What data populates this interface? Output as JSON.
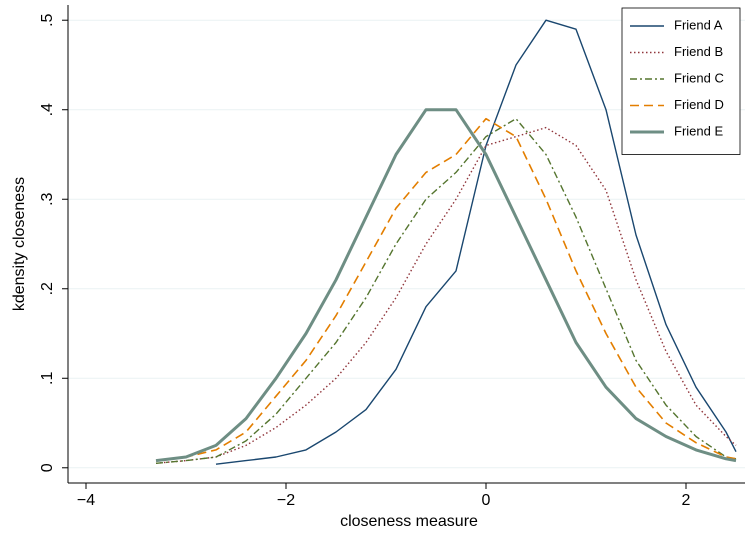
{
  "chart_data": {
    "type": "line",
    "xlabel": "closeness measure",
    "ylabel": "kdensity closeness",
    "x": [
      -3.3,
      -3.0,
      -2.7,
      -2.4,
      -2.1,
      -1.8,
      -1.5,
      -1.2,
      -0.9,
      -0.6,
      -0.3,
      0,
      0.3,
      0.6,
      0.9,
      1.2,
      1.5,
      1.8,
      2.1,
      2.4,
      2.5
    ],
    "series": [
      {
        "name": "Friend A",
        "color": "#1a476f",
        "values": [
          null,
          null,
          0.004,
          0.008,
          0.012,
          0.02,
          0.04,
          0.065,
          0.11,
          0.18,
          0.22,
          0.36,
          0.45,
          0.5,
          0.49,
          0.4,
          0.26,
          0.16,
          0.09,
          0.04,
          0.018
        ]
      },
      {
        "name": "Friend B",
        "color": "#90353b",
        "values": [
          0.005,
          0.008,
          0.012,
          0.025,
          0.045,
          0.07,
          0.1,
          0.14,
          0.19,
          0.25,
          0.3,
          0.36,
          0.37,
          0.38,
          0.36,
          0.31,
          0.21,
          0.13,
          0.07,
          0.035,
          0.025
        ]
      },
      {
        "name": "Friend C",
        "color": "#55752f",
        "values": [
          0.005,
          0.008,
          0.012,
          0.03,
          0.06,
          0.1,
          0.14,
          0.19,
          0.25,
          0.3,
          0.33,
          0.37,
          0.39,
          0.35,
          0.28,
          0.2,
          0.12,
          0.07,
          0.035,
          0.012,
          0.01
        ]
      },
      {
        "name": "Friend D",
        "color": "#e37e00",
        "values": [
          0.008,
          0.012,
          0.02,
          0.04,
          0.08,
          0.12,
          0.17,
          0.23,
          0.29,
          0.33,
          0.35,
          0.39,
          0.37,
          0.3,
          0.22,
          0.15,
          0.09,
          0.05,
          0.028,
          0.012,
          0.01
        ]
      },
      {
        "name": "Friend E",
        "color": "#6e8e84",
        "values": [
          0.008,
          0.012,
          0.025,
          0.055,
          0.1,
          0.15,
          0.21,
          0.28,
          0.35,
          0.4,
          0.4,
          0.35,
          0.28,
          0.21,
          0.14,
          0.09,
          0.055,
          0.035,
          0.02,
          0.01,
          0.008
        ]
      }
    ],
    "xlim": [
      -4.18,
      2.59
    ],
    "ylim": [
      -0.017,
      0.517
    ],
    "xticks": [
      {
        "value": -4,
        "label": "−4"
      },
      {
        "value": -2,
        "label": "−2"
      },
      0,
      2
    ],
    "yticks": [
      0,
      {
        "value": 0.1,
        "label": ".1"
      },
      {
        "value": 0.2,
        "label": ".2"
      },
      {
        "value": 0.3,
        "label": ".3"
      },
      {
        "value": 0.4,
        "label": ".4"
      },
      {
        "value": 0.5,
        "label": ".5"
      }
    ],
    "grid": true,
    "legend": "top-right"
  }
}
